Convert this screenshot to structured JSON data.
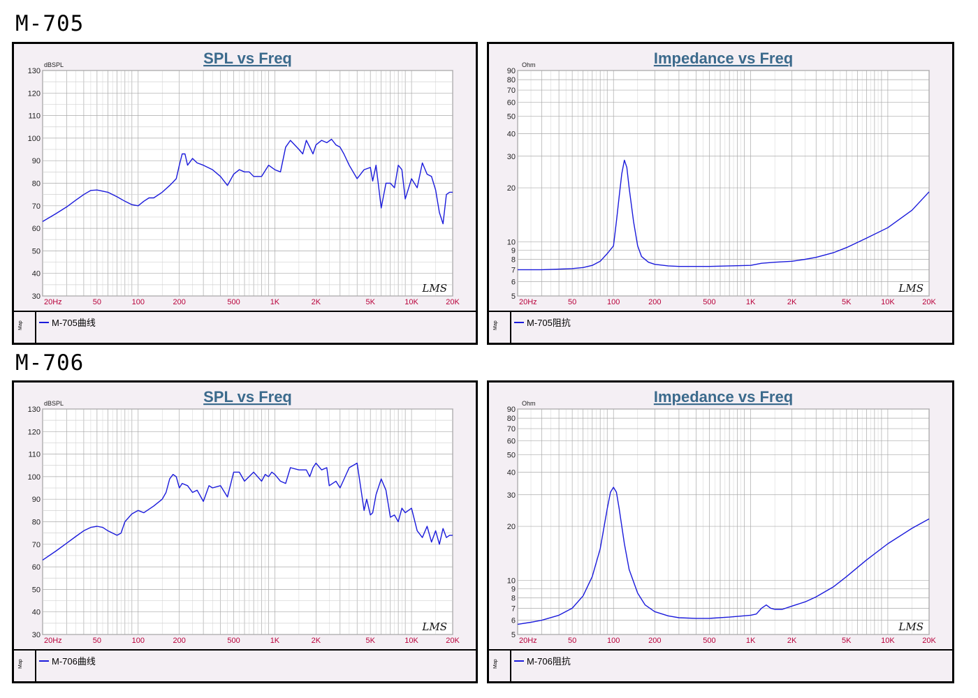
{
  "headings": {
    "top": "M-705",
    "bottom": "M-706"
  },
  "colors": {
    "curve": "#1a1adb",
    "grid": "#a9a9a9",
    "plot_bg": "#ffffff",
    "panel_bg": "#f4eff4",
    "title": "#3b6a8c",
    "xtick": "#b8003a"
  },
  "chart_data": [
    {
      "type": "line",
      "title": "SPL vs Freq",
      "ylabel": "dBSPL",
      "xscale": "log",
      "xlim": [
        20,
        20000
      ],
      "ylim": [
        30,
        130
      ],
      "xticks": [
        "20Hz",
        "50",
        "100",
        "200",
        "500",
        "1K",
        "2K",
        "5K",
        "10K",
        "20K"
      ],
      "yticks": [
        "130",
        "120",
        "110",
        "100",
        "90",
        "80",
        "70",
        "60",
        "50",
        "40",
        "30"
      ],
      "watermark": "LMS",
      "legend_side": "Map",
      "series": [
        {
          "name": "M-705曲线",
          "x": [
            20,
            25,
            30,
            35,
            40,
            45,
            50,
            60,
            70,
            80,
            90,
            100,
            110,
            120,
            130,
            150,
            170,
            180,
            190,
            200,
            210,
            220,
            230,
            250,
            270,
            300,
            350,
            400,
            450,
            500,
            550,
            600,
            650,
            700,
            800,
            900,
            1000,
            1100,
            1200,
            1300,
            1500,
            1600,
            1700,
            1800,
            1900,
            2000,
            2200,
            2400,
            2600,
            2800,
            3000,
            3200,
            3500,
            4000,
            4500,
            5000,
            5200,
            5500,
            6000,
            6500,
            7000,
            7500,
            8000,
            8500,
            9000,
            10000,
            11000,
            12000,
            13000,
            14000,
            15000,
            16000,
            17000,
            18000,
            19000,
            20000
          ],
          "y": [
            63,
            66.5,
            69.5,
            72.5,
            75,
            76.8,
            77,
            76,
            74,
            72,
            70.5,
            70,
            72,
            73.5,
            73.5,
            76,
            79,
            80.5,
            82,
            88,
            93,
            93,
            88,
            91,
            89,
            88,
            86,
            83,
            79,
            84,
            86,
            85,
            85,
            83,
            83,
            88,
            86,
            85,
            96,
            99,
            95,
            93,
            99,
            96,
            93,
            97,
            99,
            98,
            99.5,
            97,
            96,
            93,
            88,
            82,
            86,
            87,
            81,
            88,
            69,
            80,
            80,
            78,
            88,
            86,
            73,
            82,
            78,
            89,
            84,
            83,
            77,
            67,
            62,
            75,
            76,
            76
          ]
        }
      ]
    },
    {
      "type": "line",
      "title": "Impedance vs Freq",
      "ylabel": "Ohm",
      "xscale": "log",
      "yscale": "log",
      "xlim": [
        20,
        20000
      ],
      "ylim": [
        5,
        90
      ],
      "xticks": [
        "20Hz",
        "50",
        "100",
        "200",
        "500",
        "1K",
        "2K",
        "5K",
        "10K",
        "20K"
      ],
      "yticks": [
        "90",
        "80",
        "70",
        "60",
        "50",
        "40",
        "30",
        "20",
        "10",
        "9",
        "8",
        "7",
        "6",
        "5"
      ],
      "watermark": "LMS",
      "legend_side": "Map",
      "series": [
        {
          "name": "M-705阻抗",
          "x": [
            20,
            30,
            40,
            50,
            60,
            70,
            80,
            90,
            100,
            105,
            110,
            115,
            120,
            125,
            130,
            140,
            150,
            160,
            180,
            200,
            250,
            300,
            400,
            500,
            700,
            1000,
            1200,
            1500,
            2000,
            2500,
            3000,
            4000,
            5000,
            7000,
            10000,
            15000,
            20000
          ],
          "y": [
            7,
            7,
            7.05,
            7.1,
            7.2,
            7.4,
            7.8,
            8.6,
            9.5,
            13,
            18,
            24,
            28.5,
            26,
            20,
            13,
            9.5,
            8.3,
            7.7,
            7.5,
            7.35,
            7.3,
            7.3,
            7.3,
            7.35,
            7.4,
            7.6,
            7.7,
            7.8,
            8,
            8.2,
            8.7,
            9.3,
            10.5,
            12,
            15,
            19
          ]
        }
      ]
    },
    {
      "type": "line",
      "title": "SPL vs Freq",
      "ylabel": "dBSPL",
      "xscale": "log",
      "xlim": [
        20,
        20000
      ],
      "ylim": [
        30,
        130
      ],
      "xticks": [
        "20Hz",
        "50",
        "100",
        "200",
        "500",
        "1K",
        "2K",
        "5K",
        "10K",
        "20K"
      ],
      "yticks": [
        "130",
        "120",
        "110",
        "100",
        "90",
        "80",
        "70",
        "60",
        "50",
        "40",
        "30"
      ],
      "watermark": "LMS",
      "legend_side": "Map",
      "series": [
        {
          "name": "M-706曲线",
          "x": [
            20,
            25,
            30,
            35,
            40,
            45,
            50,
            55,
            60,
            70,
            75,
            80,
            90,
            100,
            110,
            130,
            150,
            160,
            170,
            180,
            190,
            200,
            210,
            230,
            250,
            270,
            300,
            330,
            350,
            400,
            450,
            500,
            550,
            600,
            700,
            800,
            850,
            900,
            950,
            1000,
            1100,
            1200,
            1300,
            1500,
            1700,
            1800,
            1900,
            2000,
            2200,
            2400,
            2500,
            2800,
            3000,
            3500,
            4000,
            4500,
            4700,
            5000,
            5200,
            5500,
            6000,
            6500,
            7000,
            7500,
            8000,
            8500,
            9000,
            10000,
            11000,
            12000,
            13000,
            14000,
            15000,
            16000,
            17000,
            18000,
            19000,
            20000
          ],
          "y": [
            63,
            67,
            70.5,
            73.5,
            76,
            77.5,
            78,
            77.5,
            76,
            74,
            75,
            80,
            83.5,
            85,
            84,
            87,
            90,
            93,
            99,
            101,
            100,
            95,
            97,
            96,
            93,
            94,
            89,
            96,
            95,
            96,
            91,
            102,
            102,
            98,
            102,
            98,
            101,
            100,
            102,
            101,
            98,
            97,
            104,
            103,
            103,
            100,
            104,
            106,
            103,
            104,
            96,
            98,
            95,
            104,
            106,
            85,
            90,
            83,
            84,
            92,
            99,
            94,
            82,
            83,
            80,
            86,
            84,
            86,
            76,
            73,
            78,
            71,
            76,
            70,
            77,
            73,
            74,
            74
          ]
        }
      ]
    },
    {
      "type": "line",
      "title": "Impedance vs Freq",
      "ylabel": "Ohm",
      "xscale": "log",
      "yscale": "log",
      "xlim": [
        20,
        20000
      ],
      "ylim": [
        5,
        90
      ],
      "xticks": [
        "20Hz",
        "50",
        "100",
        "200",
        "500",
        "1K",
        "2K",
        "5K",
        "10K",
        "20K"
      ],
      "yticks": [
        "90",
        "80",
        "70",
        "60",
        "50",
        "40",
        "30",
        "20",
        "10",
        "9",
        "8",
        "7",
        "6",
        "5"
      ],
      "watermark": "LMS",
      "legend_side": "Map",
      "series": [
        {
          "name": "M-706阻抗",
          "x": [
            20,
            25,
            30,
            40,
            50,
            60,
            70,
            80,
            90,
            95,
            100,
            105,
            110,
            120,
            130,
            150,
            170,
            200,
            250,
            300,
            400,
            500,
            700,
            1000,
            1100,
            1200,
            1300,
            1400,
            1500,
            1700,
            2000,
            2500,
            3000,
            4000,
            5000,
            7000,
            10000,
            15000,
            20000
          ],
          "y": [
            5.7,
            5.85,
            6,
            6.4,
            7,
            8.2,
            10.5,
            15,
            25,
            31,
            33,
            31,
            25,
            16,
            11.5,
            8.5,
            7.3,
            6.7,
            6.35,
            6.2,
            6.15,
            6.15,
            6.25,
            6.4,
            6.5,
            7,
            7.3,
            7,
            6.9,
            6.9,
            7.2,
            7.6,
            8.1,
            9.2,
            10.5,
            13,
            16,
            19.5,
            22
          ]
        }
      ]
    }
  ]
}
